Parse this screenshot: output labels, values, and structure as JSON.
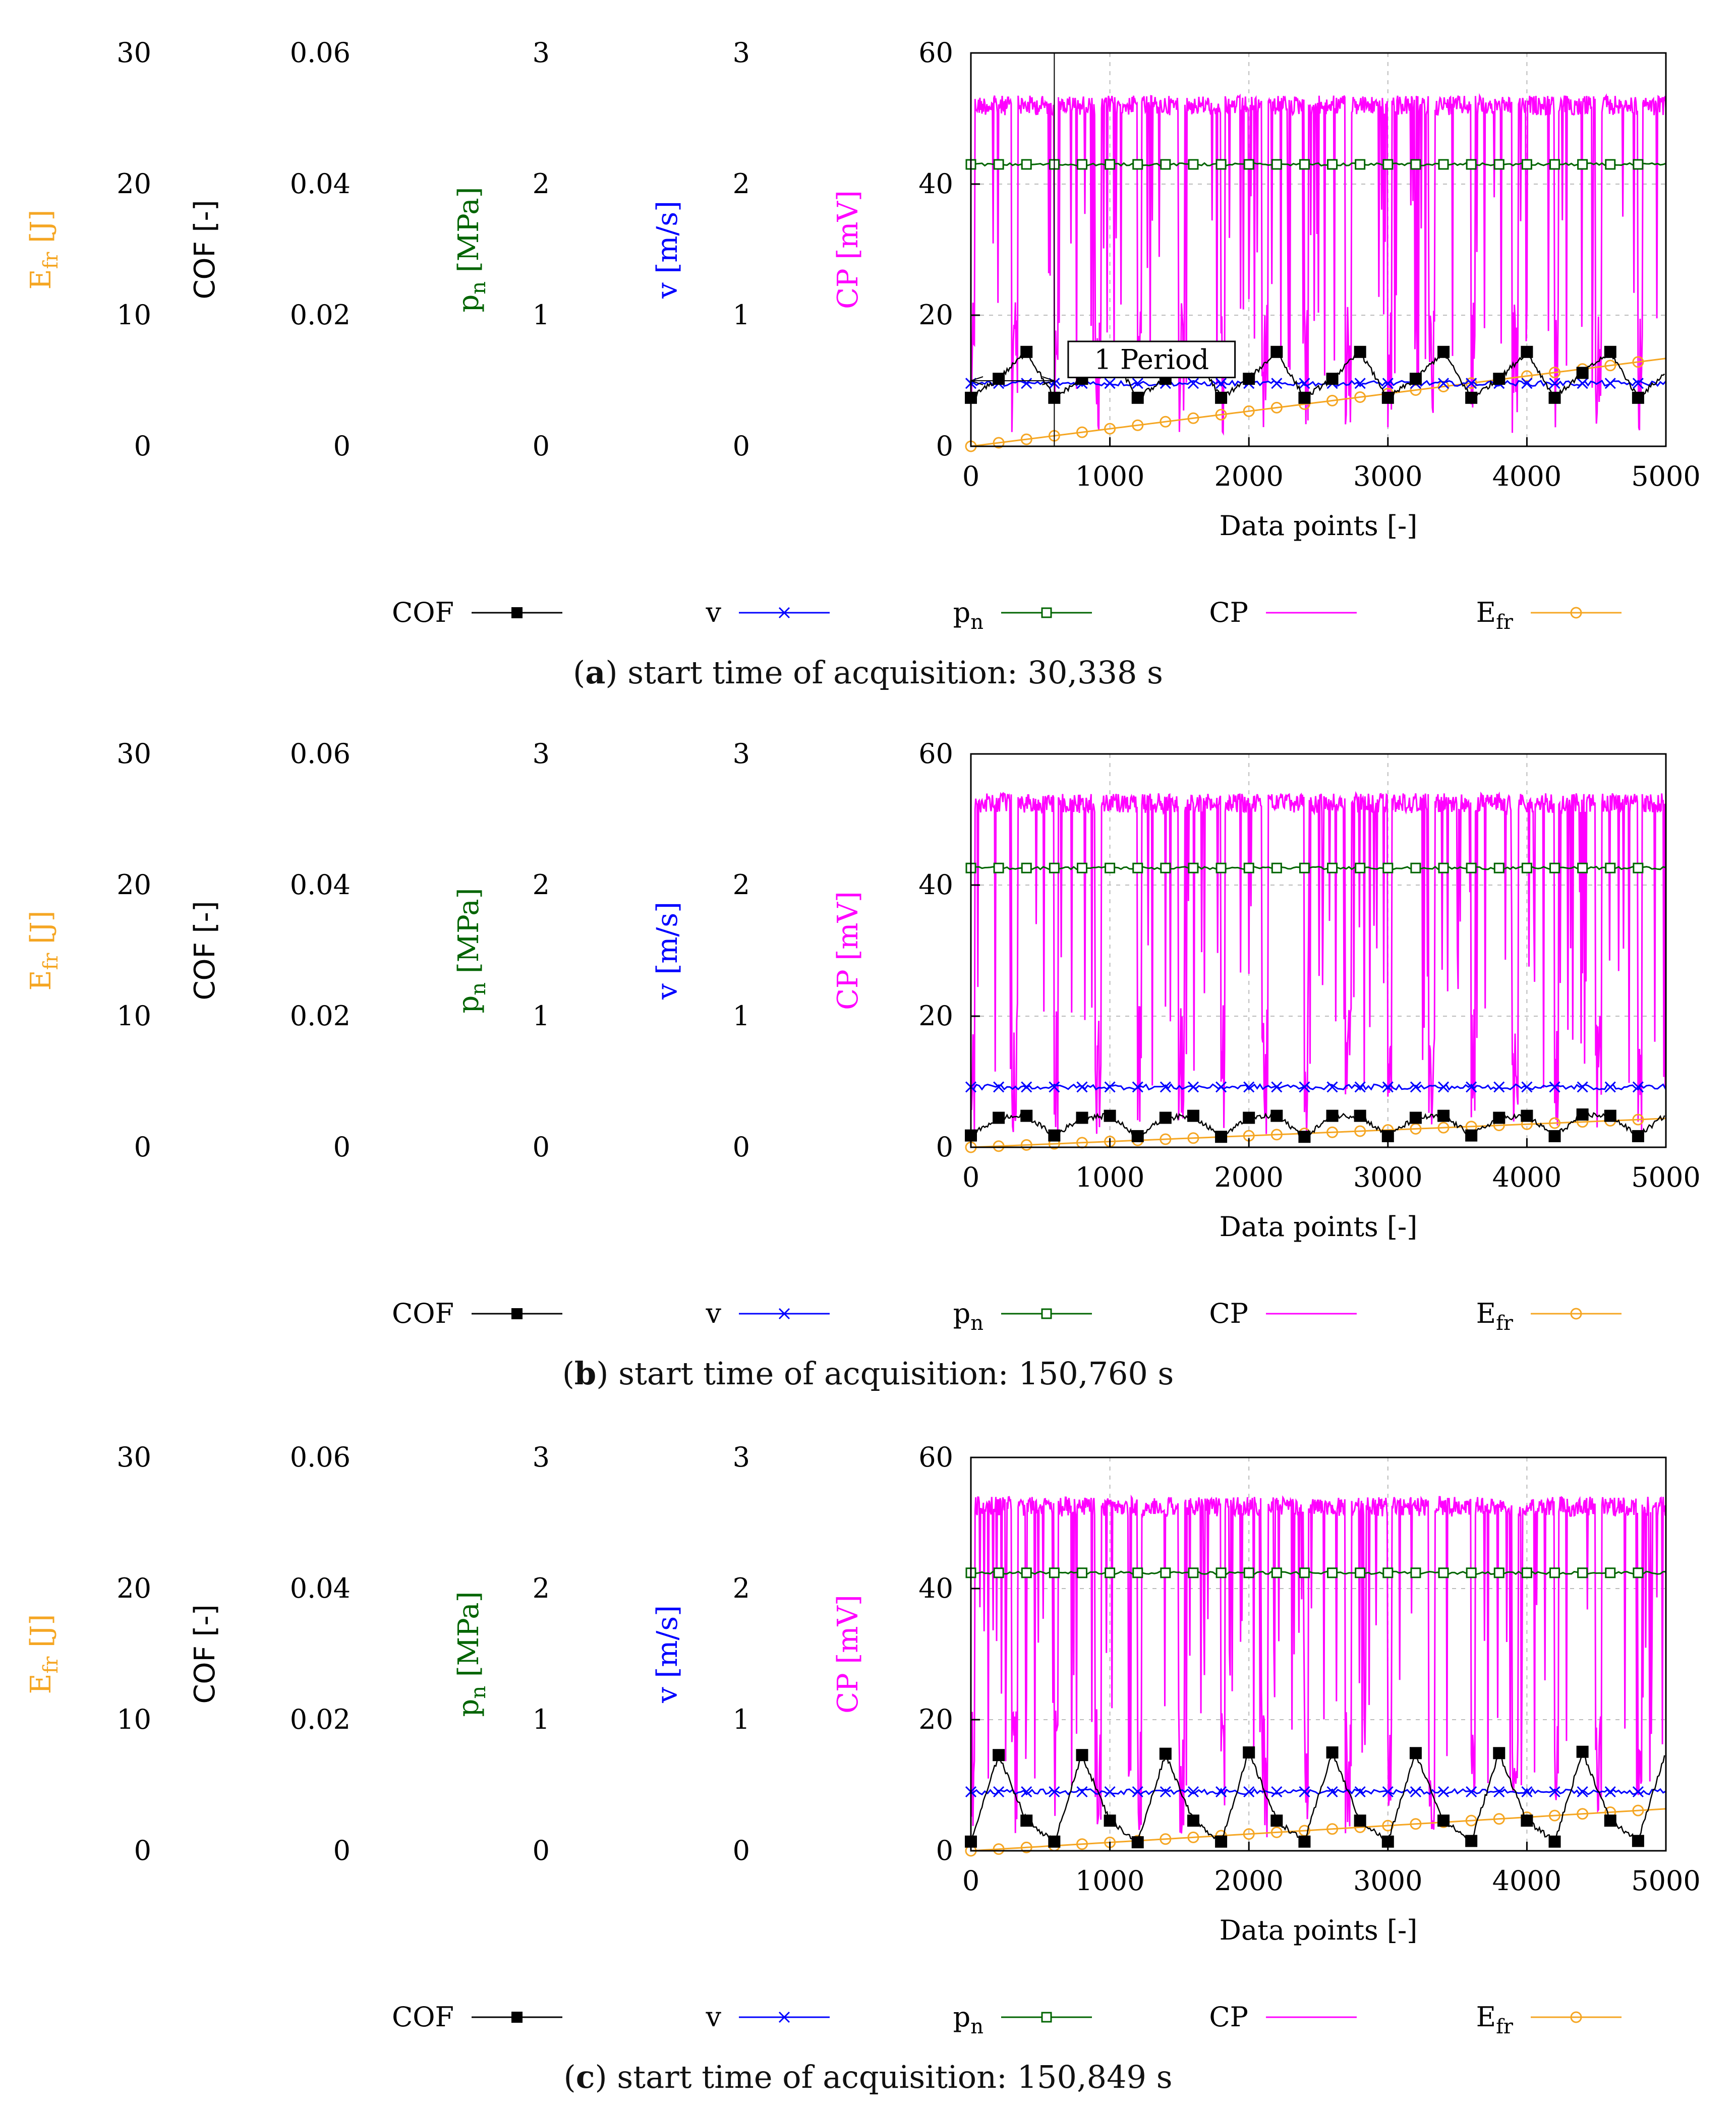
{
  "colors": {
    "COF": "#000000",
    "v": "#0000ff",
    "pn": "#006400",
    "CP": "#ff00ff",
    "Efr": "#f5a623",
    "grid": "#bbbbbb"
  },
  "axes": {
    "efr": {
      "label": "E",
      "sub": "fr",
      "unit": " [J]",
      "ticks": [
        "30",
        "20",
        "10",
        "0"
      ]
    },
    "cof": {
      "label": "COF [-]",
      "ticks": [
        "0.06",
        "0.04",
        "0.02",
        "0"
      ]
    },
    "pn": {
      "label": "p",
      "sub": "n",
      "unit": "  [MPa]",
      "ticks": [
        "3",
        "2",
        "1",
        "0"
      ]
    },
    "v": {
      "label": "v [m/s]",
      "ticks": [
        "3",
        "2",
        "1",
        "0"
      ]
    },
    "cp": {
      "label": "CP [mV]",
      "ticks": [
        "60",
        "40",
        "20",
        "0"
      ]
    },
    "x": {
      "label": "Data points [-]",
      "ticks": [
        "0",
        "1000",
        "2000",
        "3000",
        "4000",
        "5000"
      ]
    }
  },
  "legend": [
    {
      "key": "COF",
      "label": "COF",
      "sub": ""
    },
    {
      "key": "v",
      "label": "v",
      "sub": ""
    },
    {
      "key": "pn",
      "label": "p",
      "sub": "n"
    },
    {
      "key": "CP",
      "label": "CP",
      "sub": ""
    },
    {
      "key": "Efr",
      "label": "E",
      "sub": "fr"
    }
  ],
  "annotation": {
    "text": "1 Period",
    "x_start": 0,
    "x_end": 600
  },
  "chart_data": [
    {
      "type": "line",
      "caption_letter": "a",
      "caption_text": ") start time of acquisition: 30,338 s",
      "xlim": [
        0,
        5000
      ],
      "ylim_cp": [
        0,
        60
      ],
      "series": [
        {
          "key": "COF",
          "name": "COF",
          "markers_x": [
            0,
            200,
            400,
            600,
            800,
            1000,
            1200,
            1400,
            1600,
            1800,
            2000,
            2200,
            2400,
            2600,
            2800,
            3000,
            3200,
            3400,
            3600,
            3800,
            4000,
            4200,
            4400,
            4600,
            4800
          ],
          "markers_y": [
            0.0074,
            0.0103,
            0.0144,
            0.0074,
            0.0103,
            0.0144,
            0.0074,
            0.0103,
            0.0144,
            0.0074,
            0.0103,
            0.0144,
            0.0074,
            0.0103,
            0.0144,
            0.0074,
            0.0103,
            0.0144,
            0.0074,
            0.0103,
            0.0144,
            0.0074,
            0.0112,
            0.0144,
            0.0074
          ]
        },
        {
          "key": "v",
          "name": "v",
          "mean": 0.48
        },
        {
          "key": "pn",
          "name": "p_n",
          "mean": 2.15
        },
        {
          "key": "CP",
          "name": "CP",
          "high": 53.5,
          "low": 2
        },
        {
          "key": "Efr",
          "name": "E_fr",
          "end": 6.7
        }
      ]
    },
    {
      "type": "line",
      "caption_letter": "b",
      "caption_text": ") start time of acquisition: 150,760 s",
      "xlim": [
        0,
        5000
      ],
      "ylim_cp": [
        0,
        60
      ],
      "series": [
        {
          "key": "COF",
          "name": "COF",
          "markers_x": [
            0,
            200,
            400,
            600,
            800,
            1000,
            1200,
            1400,
            1600,
            1800,
            2000,
            2200,
            2400,
            2600,
            2800,
            3000,
            3200,
            3400,
            3600,
            3800,
            4000,
            4200,
            4400,
            4600,
            4800
          ],
          "markers_y": [
            0.0018,
            0.0045,
            0.0048,
            0.0018,
            0.0045,
            0.0048,
            0.0017,
            0.0045,
            0.0048,
            0.0016,
            0.0045,
            0.0048,
            0.0016,
            0.0048,
            0.0048,
            0.0017,
            0.0045,
            0.0048,
            0.0018,
            0.0045,
            0.0048,
            0.0017,
            0.005,
            0.0048,
            0.0017
          ]
        },
        {
          "key": "v",
          "name": "v",
          "mean": 0.46
        },
        {
          "key": "pn",
          "name": "p_n",
          "mean": 2.13
        },
        {
          "key": "CP",
          "name": "CP",
          "high": 54,
          "low": 2
        },
        {
          "key": "Efr",
          "name": "E_fr",
          "end": 2.2
        }
      ]
    },
    {
      "type": "line",
      "caption_letter": "c",
      "caption_text": ") start time of acquisition: 150,849 s",
      "xlim": [
        0,
        5000
      ],
      "ylim_cp": [
        0,
        60
      ],
      "series": [
        {
          "key": "COF",
          "name": "COF",
          "markers_x": [
            0,
            200,
            400,
            600,
            800,
            1000,
            1200,
            1400,
            1600,
            1800,
            2000,
            2200,
            2400,
            2600,
            2800,
            3000,
            3200,
            3400,
            3600,
            3800,
            4000,
            4200,
            4400,
            4600,
            4800
          ],
          "markers_y": [
            0.0014,
            0.0146,
            0.0046,
            0.0014,
            0.0146,
            0.0046,
            0.0013,
            0.0148,
            0.0046,
            0.0014,
            0.015,
            0.0046,
            0.0014,
            0.015,
            0.0046,
            0.0014,
            0.0149,
            0.0046,
            0.0015,
            0.0149,
            0.0046,
            0.0014,
            0.0151,
            0.0046,
            0.0015
          ]
        },
        {
          "key": "v",
          "name": "v",
          "mean": 0.45
        },
        {
          "key": "pn",
          "name": "p_n",
          "mean": 2.12
        },
        {
          "key": "CP",
          "name": "CP",
          "high": 54,
          "low": 2
        },
        {
          "key": "Efr",
          "name": "E_fr",
          "end": 3.2
        }
      ]
    }
  ]
}
